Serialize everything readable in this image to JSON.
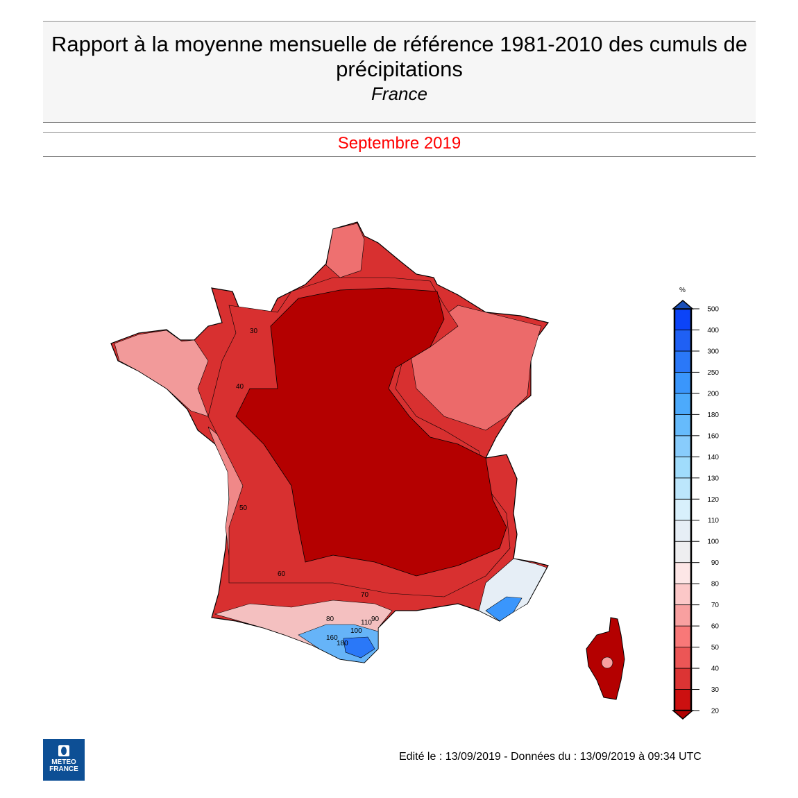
{
  "header": {
    "title": "Rapport à la moyenne mensuelle de référence 1981-2010 des cumuls de précipitations",
    "region": "France"
  },
  "period": {
    "label": "Septembre 2019",
    "color": "#ff0000"
  },
  "footer": {
    "text": "Edité le : 13/09/2019 - Données du : 13/09/2019 à 09:34 UTC"
  },
  "logo": {
    "line1": "METEO",
    "line2": "FRANCE"
  },
  "legend": {
    "unit": "%",
    "ticks": [
      "20",
      "30",
      "40",
      "50",
      "60",
      "70",
      "80",
      "90",
      "100",
      "110",
      "120",
      "130",
      "140",
      "160",
      "180",
      "200",
      "250",
      "300",
      "400",
      "500"
    ],
    "colors": [
      "#cc1010",
      "#dc3434",
      "#ec5656",
      "#f87878",
      "#f8a0a0",
      "#fcc8c8",
      "#fde6e6",
      "#eeeef0",
      "#e6eef6",
      "#d8f0fc",
      "#bce6fc",
      "#a0dcfc",
      "#88ccfc",
      "#66bbfc",
      "#4caafc",
      "#3a96fc",
      "#2a78f8",
      "#1f60f4",
      "#0c44f8"
    ],
    "over_color": "#1a4fb8",
    "under_color": "#b00000"
  },
  "map": {
    "interior_color": "#b40000",
    "fringe_color": "#d83030",
    "contour_labels": [
      "30",
      "40",
      "50",
      "60",
      "70",
      "80",
      "90",
      "100",
      "110",
      "160",
      "180"
    ]
  }
}
